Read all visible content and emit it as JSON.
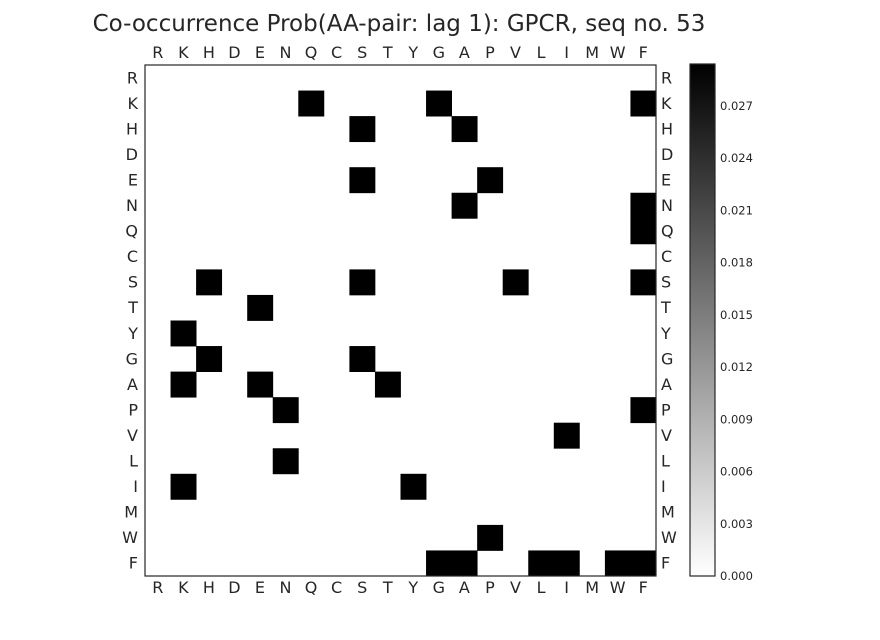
{
  "chart_data": {
    "type": "heatmap",
    "title": "Co-occurrence Prob(AA-pair: lag 1):  GPCR, seq no. 53",
    "xlabel": "",
    "ylabel": "",
    "x_categories": [
      "R",
      "K",
      "H",
      "D",
      "E",
      "N",
      "Q",
      "C",
      "S",
      "T",
      "Y",
      "G",
      "A",
      "P",
      "V",
      "L",
      "I",
      "M",
      "W",
      "F"
    ],
    "y_categories": [
      "R",
      "K",
      "H",
      "D",
      "E",
      "N",
      "Q",
      "C",
      "S",
      "T",
      "Y",
      "G",
      "A",
      "P",
      "V",
      "L",
      "I",
      "M",
      "W",
      "F"
    ],
    "x_ticks_top": true,
    "y_ticks_right": true,
    "grid": false,
    "colormap": "gray_r",
    "vmin": 0.0,
    "vmax": 0.0294,
    "colorbar": {
      "ticks": [
        0.0,
        0.003,
        0.006,
        0.009,
        0.012,
        0.015,
        0.018,
        0.021,
        0.024,
        0.027
      ],
      "tick_labels": [
        "0.000",
        "0.003",
        "0.006",
        "0.009",
        "0.012",
        "0.015",
        "0.018",
        "0.021",
        "0.024",
        "0.027"
      ],
      "placement": "right"
    },
    "cell_value": 0.0294,
    "nonzero_cells": [
      {
        "row": "K",
        "col": "Q",
        "value": 0.0294
      },
      {
        "row": "K",
        "col": "G",
        "value": 0.0294
      },
      {
        "row": "K",
        "col": "F",
        "value": 0.0294
      },
      {
        "row": "H",
        "col": "S",
        "value": 0.0294
      },
      {
        "row": "H",
        "col": "A",
        "value": 0.0294
      },
      {
        "row": "E",
        "col": "S",
        "value": 0.0294
      },
      {
        "row": "E",
        "col": "P",
        "value": 0.0294
      },
      {
        "row": "N",
        "col": "A",
        "value": 0.0294
      },
      {
        "row": "N",
        "col": "F",
        "value": 0.0294
      },
      {
        "row": "Q",
        "col": "F",
        "value": 0.0294
      },
      {
        "row": "S",
        "col": "H",
        "value": 0.0294
      },
      {
        "row": "S",
        "col": "S",
        "value": 0.0294
      },
      {
        "row": "S",
        "col": "V",
        "value": 0.0294
      },
      {
        "row": "S",
        "col": "F",
        "value": 0.0294
      },
      {
        "row": "T",
        "col": "E",
        "value": 0.0294
      },
      {
        "row": "Y",
        "col": "K",
        "value": 0.0294
      },
      {
        "row": "G",
        "col": "H",
        "value": 0.0294
      },
      {
        "row": "G",
        "col": "S",
        "value": 0.0294
      },
      {
        "row": "A",
        "col": "K",
        "value": 0.0294
      },
      {
        "row": "A",
        "col": "E",
        "value": 0.0294
      },
      {
        "row": "A",
        "col": "T",
        "value": 0.0294
      },
      {
        "row": "P",
        "col": "N",
        "value": 0.0294
      },
      {
        "row": "P",
        "col": "F",
        "value": 0.0294
      },
      {
        "row": "V",
        "col": "I",
        "value": 0.0294
      },
      {
        "row": "L",
        "col": "N",
        "value": 0.0294
      },
      {
        "row": "I",
        "col": "K",
        "value": 0.0294
      },
      {
        "row": "I",
        "col": "Y",
        "value": 0.0294
      },
      {
        "row": "W",
        "col": "P",
        "value": 0.0294
      },
      {
        "row": "F",
        "col": "G",
        "value": 0.0294
      },
      {
        "row": "F",
        "col": "A",
        "value": 0.0294
      },
      {
        "row": "F",
        "col": "L",
        "value": 0.0294
      },
      {
        "row": "F",
        "col": "I",
        "value": 0.0294
      },
      {
        "row": "F",
        "col": "W",
        "value": 0.0294
      },
      {
        "row": "F",
        "col": "F",
        "value": 0.0294
      }
    ]
  }
}
